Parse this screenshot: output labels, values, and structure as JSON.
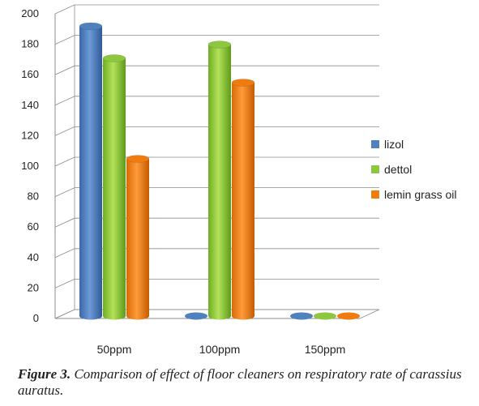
{
  "chart_data": {
    "type": "bar",
    "categories": [
      "50ppm",
      "100ppm",
      "150ppm"
    ],
    "series": [
      {
        "name": "lizol",
        "values": [
          187,
          0,
          0
        ],
        "color": "#4f81bd"
      },
      {
        "name": "dettol",
        "values": [
          166,
          175,
          0
        ],
        "color": "#8dc63f"
      },
      {
        "name": "lemin grass oil",
        "values": [
          100,
          150,
          0
        ],
        "color": "#f07c10"
      }
    ],
    "ylim": [
      0,
      200
    ],
    "yticks": [
      "0",
      "20",
      "40",
      "60",
      "80",
      "100",
      "120",
      "140",
      "160",
      "180",
      "200"
    ],
    "grid": true,
    "legend": "right",
    "style": "3d-cylinder"
  },
  "caption": {
    "label": "Figure 3.",
    "text": " Comparison of effect of floor cleaners on respiratory rate of carassius auratus."
  }
}
